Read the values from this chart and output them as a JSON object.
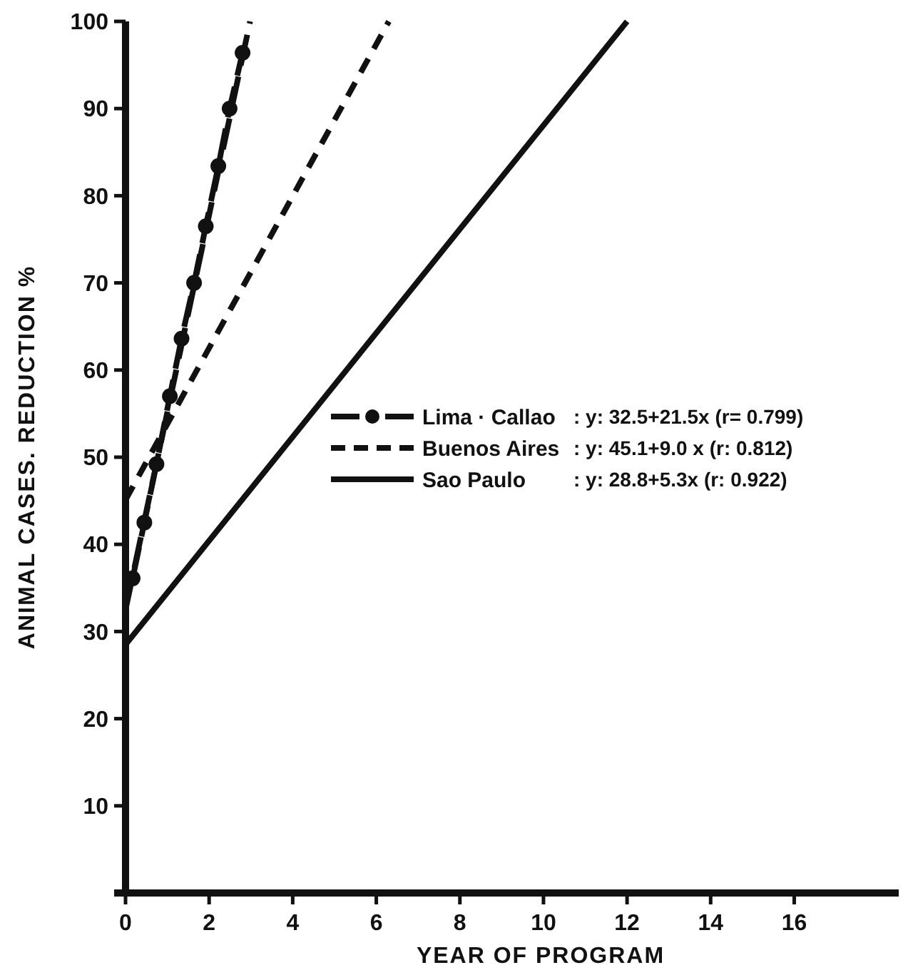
{
  "chart_data": {
    "type": "line",
    "xlabel": "YEAR OF PROGRAM",
    "ylabel": "ANIMAL CASES. REDUCTION %",
    "xlim": [
      0,
      18.5
    ],
    "xticks": [
      0,
      2,
      4,
      6,
      8,
      10,
      12,
      14,
      16
    ],
    "ylim": [
      0,
      100
    ],
    "yticks": [
      {
        "value": 0,
        "label": null
      },
      10,
      20,
      30,
      40,
      50,
      60,
      70,
      80,
      90,
      100
    ],
    "grid": false,
    "legend": "center",
    "tick_labels": true,
    "series": [
      {
        "name": "Lima · Callao",
        "color": "#111111",
        "line_style": "dashed",
        "marker": "circle",
        "x": [
          0.17,
          0.45,
          0.74,
          1.06,
          1.34,
          1.64,
          1.92,
          2.22,
          2.49,
          2.8
        ],
        "values": [
          36.1,
          42.5,
          49.2,
          57.0,
          63.6,
          70.0,
          76.5,
          83.4,
          90.0,
          96.4
        ]
      },
      {
        "name": "Buenos Aires",
        "color": "#111111",
        "line_style": "dotted",
        "marker": "none",
        "x": [
          0,
          6.3
        ],
        "values": [
          45.1,
          100
        ]
      },
      {
        "name": "Sao Paulo",
        "color": "#111111",
        "line_style": "solid",
        "marker": "none",
        "x": [
          0,
          12
        ],
        "values": [
          28.5,
          100
        ]
      },
      {
        "color": "#111111",
        "line_style": "dashed",
        "marker": "none",
        "x": [
          0,
          2.98
        ],
        "values": [
          32.5,
          100
        ]
      }
    ],
    "annotations": [
      ": y: 32.5+21.5x (r= 0.799)",
      ": y: 45.1+9.0 x (r: 0.812)",
      ": y: 28.8+5.3x (r: 0.922)"
    ]
  }
}
